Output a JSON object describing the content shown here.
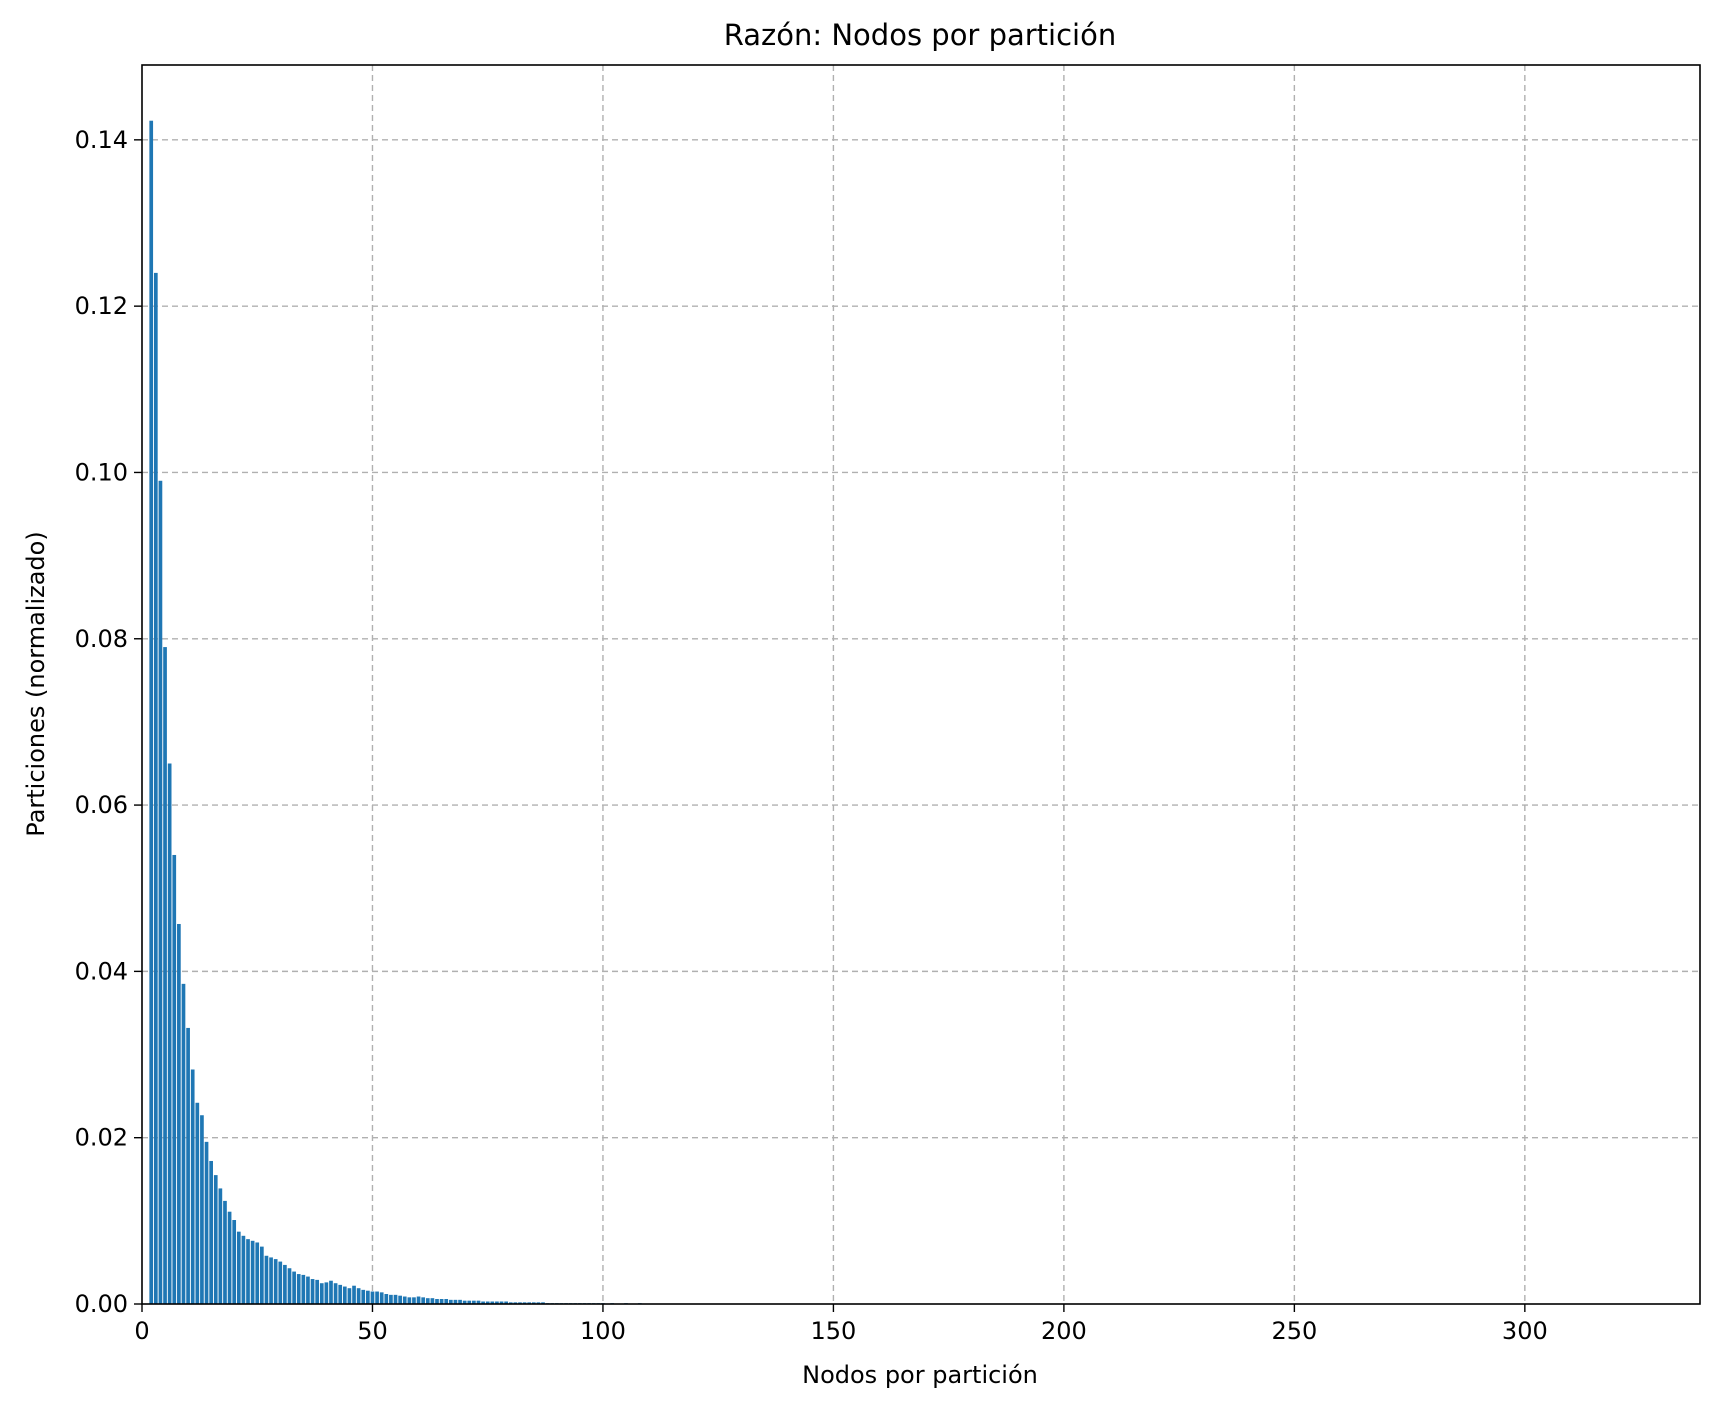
{
  "chart_data": {
    "type": "bar",
    "title": "Razón: Nodos por partición",
    "xlabel": "Nodos por partición",
    "ylabel": "Particiones (normalizado)",
    "xlim": [
      0,
      338
    ],
    "ylim": [
      0,
      0.149
    ],
    "xticks": [
      0,
      50,
      100,
      150,
      200,
      250,
      300
    ],
    "yticks": [
      0.0,
      0.02,
      0.04,
      0.06,
      0.08,
      0.1,
      0.12,
      0.14
    ],
    "xtick_labels": [
      "0",
      "50",
      "100",
      "150",
      "200",
      "250",
      "300"
    ],
    "ytick_labels": [
      "0.00",
      "0.02",
      "0.04",
      "0.06",
      "0.08",
      "0.10",
      "0.12",
      "0.14"
    ],
    "grid": true,
    "bar_color": "#1f77b4",
    "grid_color": "#b0b0b0",
    "x": [
      2,
      3,
      4,
      5,
      6,
      7,
      8,
      9,
      10,
      11,
      12,
      13,
      14,
      15,
      16,
      17,
      18,
      19,
      20,
      21,
      22,
      23,
      24,
      25,
      26,
      27,
      28,
      29,
      30,
      31,
      32,
      33,
      34,
      35,
      36,
      37,
      38,
      39,
      40,
      41,
      42,
      43,
      44,
      45,
      46,
      47,
      48,
      49,
      50,
      51,
      52,
      53,
      54,
      55,
      56,
      57,
      58,
      59,
      60,
      61,
      62,
      63,
      64,
      65,
      66,
      67,
      68,
      69,
      70,
      71,
      72,
      73,
      74,
      75,
      76,
      77,
      78,
      79,
      80,
      81,
      82,
      83,
      84,
      85,
      86,
      87,
      88,
      89,
      90,
      91,
      92,
      93,
      94,
      95,
      96,
      97,
      98,
      99,
      100,
      102,
      105,
      108
    ],
    "values": [
      0.1423,
      0.124,
      0.099,
      0.079,
      0.065,
      0.054,
      0.0457,
      0.0385,
      0.0332,
      0.0282,
      0.0242,
      0.0227,
      0.0195,
      0.0172,
      0.0155,
      0.0139,
      0.0124,
      0.0111,
      0.0101,
      0.0087,
      0.0082,
      0.0078,
      0.0076,
      0.0074,
      0.0069,
      0.0058,
      0.0056,
      0.0054,
      0.0051,
      0.0047,
      0.0043,
      0.0039,
      0.0036,
      0.0035,
      0.0033,
      0.003,
      0.0029,
      0.0025,
      0.0026,
      0.0028,
      0.0025,
      0.0023,
      0.0021,
      0.0019,
      0.0022,
      0.0019,
      0.0017,
      0.0016,
      0.0015,
      0.0015,
      0.0014,
      0.0012,
      0.0011,
      0.0011,
      0.001,
      0.0009,
      0.0008,
      0.0008,
      0.0009,
      0.0008,
      0.0007,
      0.0007,
      0.0006,
      0.0006,
      0.0006,
      0.0005,
      0.0005,
      0.0005,
      0.0004,
      0.0004,
      0.0004,
      0.0004,
      0.0003,
      0.0003,
      0.0003,
      0.0003,
      0.0003,
      0.0003,
      0.0002,
      0.0002,
      0.0002,
      0.0002,
      0.0002,
      0.0002,
      0.0002,
      0.0002,
      0.0001,
      0.0001,
      0.0001,
      0.0001,
      0.0001,
      0.0001,
      0.0001,
      0.0001,
      0.0001,
      0.0001,
      0.0001,
      0.0001,
      0.0001,
      0.0001,
      0.0001,
      0.0001
    ]
  }
}
